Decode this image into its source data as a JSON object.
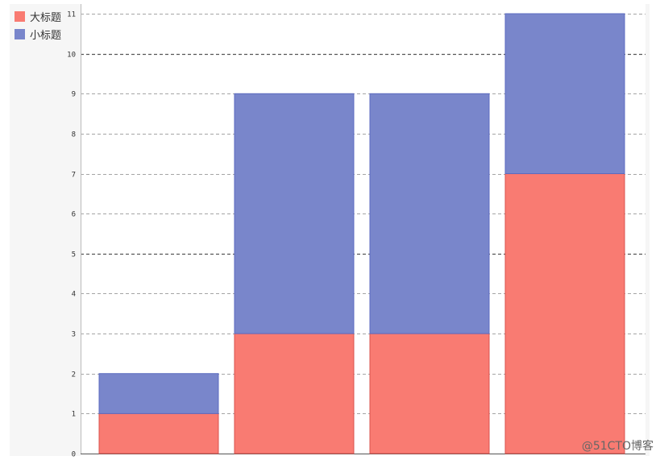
{
  "chart_data": {
    "type": "bar",
    "stacked": true,
    "categories": [
      "",
      "",
      "",
      ""
    ],
    "series": [
      {
        "name": "大标题",
        "values": [
          1,
          3,
          3,
          7
        ],
        "color": "#f97b72"
      },
      {
        "name": "小标题",
        "values": [
          1,
          6,
          6,
          4
        ],
        "color": "#7986cb"
      }
    ],
    "ylim": [
      0,
      11
    ],
    "yticks": [
      0,
      1,
      2,
      3,
      4,
      5,
      6,
      7,
      8,
      9,
      10,
      11
    ],
    "grid": true,
    "legend_position": "top-left",
    "title": "",
    "xlabel": "",
    "ylabel": ""
  },
  "watermark": "@51CTO博客",
  "colors": {
    "grid": "#888888",
    "axis": "#555555",
    "plot_background": "#ffffff",
    "outer_background": "#f6f6f6"
  }
}
